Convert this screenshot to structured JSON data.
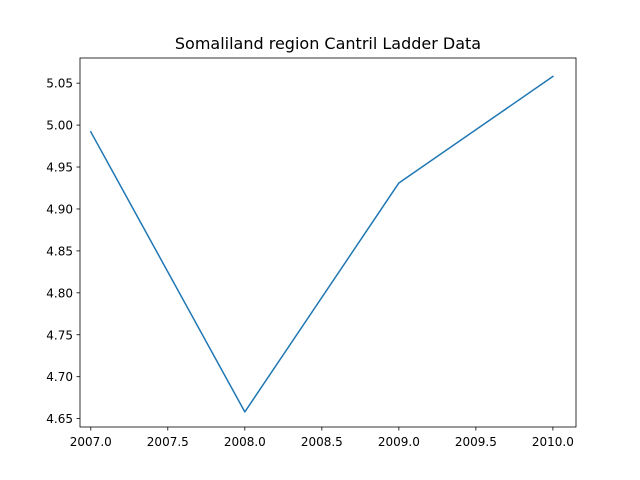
{
  "chart_data": {
    "type": "line",
    "title": "Somaliland region Cantril Ladder Data",
    "xlabel": "",
    "ylabel": "",
    "x": [
      2007,
      2008,
      2009,
      2010
    ],
    "series": [
      {
        "values": [
          4.992,
          4.658,
          4.931,
          5.058
        ],
        "color": "#1f77b4"
      }
    ],
    "xlim": [
      2006.93,
      2010.15
    ],
    "ylim": [
      4.64,
      5.08
    ],
    "xticks": [
      2007.0,
      2007.5,
      2008.0,
      2008.5,
      2009.0,
      2009.5,
      2010.0
    ],
    "xtick_labels": [
      "2007.0",
      "2007.5",
      "2008.0",
      "2008.5",
      "2009.0",
      "2009.5",
      "2010.0"
    ],
    "yticks": [
      4.65,
      4.7,
      4.75,
      4.8,
      4.85,
      4.9,
      4.95,
      5.0,
      5.05
    ],
    "ytick_labels": [
      "4.65",
      "4.70",
      "4.75",
      "4.80",
      "4.85",
      "4.90",
      "4.95",
      "5.00",
      "5.05"
    ],
    "grid": false,
    "legend": "none"
  }
}
